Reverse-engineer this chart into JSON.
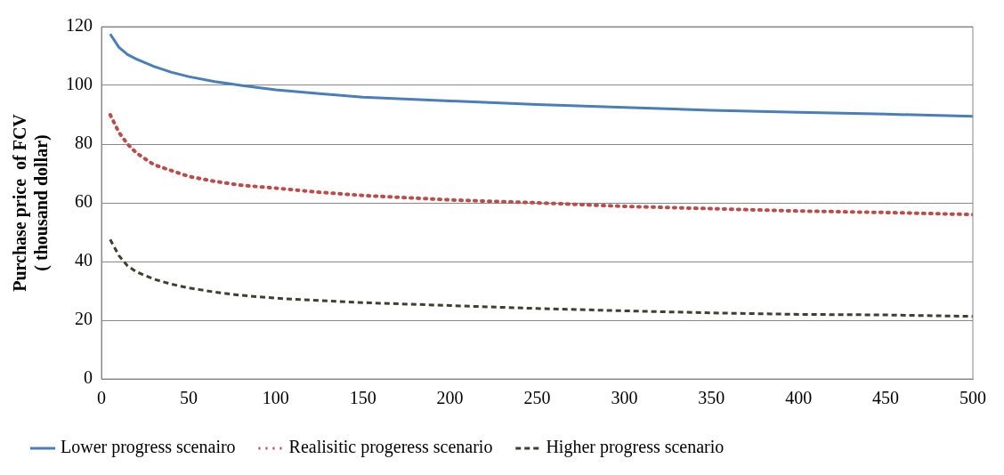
{
  "chart_data": {
    "type": "line",
    "ylabel": "Purchase price  of FCV\n( thousand dollar)",
    "xlim": [
      0,
      500
    ],
    "xticks": [
      0,
      50,
      100,
      150,
      200,
      250,
      300,
      350,
      400,
      450,
      500
    ],
    "ylim": [
      0,
      120
    ],
    "yticks": [
      0,
      20,
      40,
      60,
      80,
      100,
      120
    ],
    "grid": "y",
    "legend": "bottom",
    "marker": "none",
    "x": [
      5,
      10,
      15,
      20,
      30,
      40,
      50,
      65,
      80,
      100,
      125,
      150,
      200,
      250,
      300,
      350,
      400,
      450,
      500
    ],
    "series": [
      {
        "name": "Lower progress scenairo",
        "color": "#4a7ebb",
        "line_style": "solid",
        "values": [
          117.5,
          113,
          110.5,
          109,
          106.5,
          104.5,
          103,
          101.3,
          100,
          98.5,
          97.2,
          96,
          94.7,
          93.5,
          92.5,
          91.5,
          90.8,
          90.2,
          89.5
        ]
      },
      {
        "name": "Realisitic progeress scenario",
        "color": "#be4b48",
        "line_style": "dotted",
        "values": [
          90,
          84,
          80,
          77,
          73,
          71,
          69,
          67.3,
          66,
          65,
          63.6,
          62.5,
          61,
          60,
          58.8,
          58,
          57.2,
          56.7,
          56
        ]
      },
      {
        "name": "Higher progress scenario",
        "color": "#3f3f2f",
        "line_style": "dashed",
        "values": [
          47.5,
          42,
          38.5,
          36.5,
          34,
          32.3,
          31,
          29.6,
          28.5,
          27.5,
          26.7,
          26,
          25,
          24,
          23.2,
          22.5,
          22,
          21.8,
          21.3
        ]
      }
    ]
  }
}
